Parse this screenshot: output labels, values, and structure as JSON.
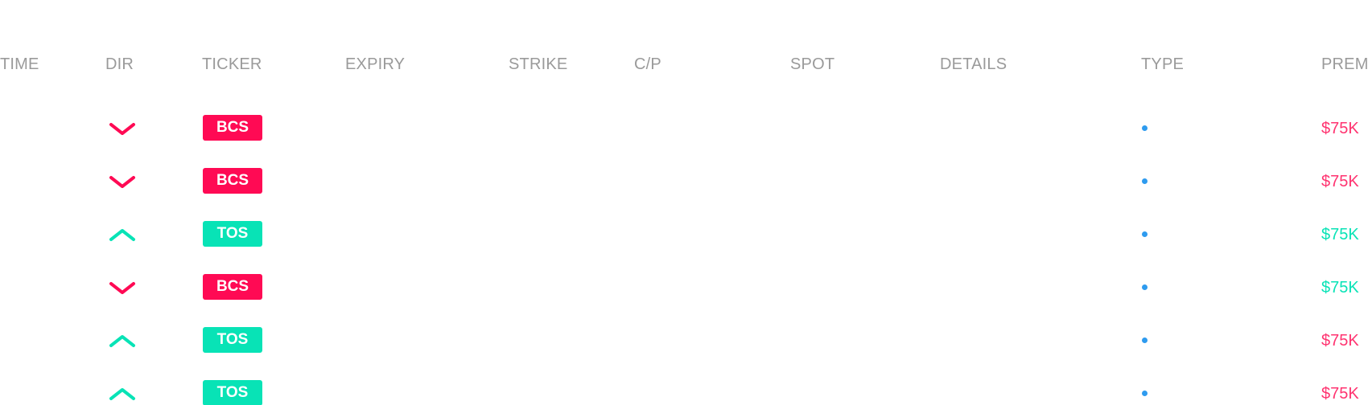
{
  "colors": {
    "bearish": "#ff0a54",
    "bullish": "#08e3b6",
    "type_dot": "#2e9bef",
    "header_text": "#9a9a9a"
  },
  "headers": [
    "TIME",
    "DIR",
    "TICKER",
    "EXPIRY",
    "STRIKE",
    "C/P",
    "SPOT",
    "DETAILS",
    "TYPE",
    "PREM"
  ],
  "rows": [
    {
      "dir": "down",
      "dir_icon": "chevron-down-icon",
      "ticker": "BCS",
      "ticker_color": "#ff0a54",
      "type_icon": "dot-icon",
      "prem": "$75K",
      "prem_color": "#ff3370"
    },
    {
      "dir": "down",
      "dir_icon": "chevron-down-icon",
      "ticker": "BCS",
      "ticker_color": "#ff0a54",
      "type_icon": "dot-icon",
      "prem": "$75K",
      "prem_color": "#ff3370"
    },
    {
      "dir": "up",
      "dir_icon": "chevron-up-icon",
      "ticker": "TOS",
      "ticker_color": "#08e3b6",
      "type_icon": "dot-icon",
      "prem": "$75K",
      "prem_color": "#08e3b6"
    },
    {
      "dir": "down",
      "dir_icon": "chevron-down-icon",
      "ticker": "BCS",
      "ticker_color": "#ff0a54",
      "type_icon": "dot-icon",
      "prem": "$75K",
      "prem_color": "#08e3b6"
    },
    {
      "dir": "up",
      "dir_icon": "chevron-up-icon",
      "ticker": "TOS",
      "ticker_color": "#08e3b6",
      "type_icon": "dot-icon",
      "prem": "$75K",
      "prem_color": "#ff3370"
    },
    {
      "dir": "up",
      "dir_icon": "chevron-up-icon",
      "ticker": "TOS",
      "ticker_color": "#08e3b6",
      "type_icon": "dot-icon",
      "prem": "$75K",
      "prem_color": "#ff3370"
    }
  ]
}
